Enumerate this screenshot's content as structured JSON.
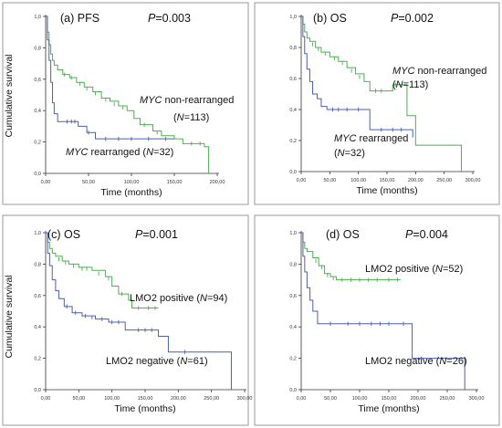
{
  "colors": {
    "group_a": "#4cb050",
    "group_b": "#4d5fb2"
  },
  "chart_data": [
    {
      "type": "line",
      "panel_label": "(a) PFS",
      "p_value_label": "P=0.003",
      "xlabel": "Time (months)",
      "ylabel": "Cumulative survival",
      "x_ticks": [
        "0,00",
        "50,00",
        "100,00",
        "150,00",
        "200,00"
      ],
      "y_ticks": [
        "0,0",
        "0,2",
        "0,4",
        "0,6",
        "0,8",
        "1,0"
      ],
      "xlim": [
        0,
        200
      ],
      "ylim": [
        0,
        1
      ],
      "series": [
        {
          "italic_part": "MYC",
          "rest_part": " non-rearranged",
          "n_label": "(N=113)",
          "points": [
            [
              0,
              1.0
            ],
            [
              2,
              0.9
            ],
            [
              4,
              0.82
            ],
            [
              6,
              0.76
            ],
            [
              8,
              0.72
            ],
            [
              10,
              0.69
            ],
            [
              14,
              0.66
            ],
            [
              20,
              0.63
            ],
            [
              28,
              0.61
            ],
            [
              36,
              0.58
            ],
            [
              45,
              0.55
            ],
            [
              55,
              0.52
            ],
            [
              65,
              0.48
            ],
            [
              75,
              0.46
            ],
            [
              85,
              0.43
            ],
            [
              95,
              0.4
            ],
            [
              103,
              0.35
            ],
            [
              110,
              0.31
            ],
            [
              125,
              0.27
            ],
            [
              135,
              0.24
            ],
            [
              150,
              0.22
            ],
            [
              160,
              0.19
            ],
            [
              175,
              0.19
            ],
            [
              185,
              0.17
            ],
            [
              190,
              0.0
            ]
          ],
          "censored": [
            [
              22,
              0.63
            ],
            [
              30,
              0.61
            ],
            [
              40,
              0.57
            ],
            [
              48,
              0.54
            ],
            [
              58,
              0.51
            ],
            [
              70,
              0.47
            ],
            [
              80,
              0.44
            ],
            [
              90,
              0.42
            ],
            [
              115,
              0.31
            ],
            [
              130,
              0.26
            ],
            [
              170,
              0.19
            ],
            [
              180,
              0.19
            ]
          ]
        },
        {
          "italic_part": "MYC",
          "rest_part": " rearranged",
          "n_label": "(N=32)",
          "points": [
            [
              0,
              1.0
            ],
            [
              2,
              0.85
            ],
            [
              4,
              0.72
            ],
            [
              6,
              0.58
            ],
            [
              8,
              0.45
            ],
            [
              10,
              0.38
            ],
            [
              14,
              0.33
            ],
            [
              20,
              0.33
            ],
            [
              38,
              0.3
            ],
            [
              48,
              0.26
            ],
            [
              58,
              0.22
            ],
            [
              150,
              0.22
            ]
          ],
          "censored": [
            [
              25,
              0.33
            ],
            [
              30,
              0.33
            ],
            [
              34,
              0.33
            ],
            [
              50,
              0.26
            ],
            [
              70,
              0.22
            ],
            [
              85,
              0.22
            ],
            [
              100,
              0.22
            ],
            [
              120,
              0.22
            ],
            [
              140,
              0.22
            ]
          ]
        }
      ]
    },
    {
      "type": "line",
      "panel_label": "(b) OS",
      "p_value_label": "P=0.002",
      "xlabel": "Time (months)",
      "ylabel": "",
      "x_ticks": [
        "0,00",
        "50,00",
        "100,00",
        "150,00",
        "200,00",
        "250,00",
        "300,00"
      ],
      "y_ticks": [
        "0,0",
        "0,2",
        "0,4",
        "0,6",
        "0,8",
        "1,0"
      ],
      "xlim": [
        0,
        300
      ],
      "ylim": [
        0,
        1
      ],
      "series": [
        {
          "italic_part": "MYC",
          "rest_part": " non-rearranged",
          "n_label": "(N=113)",
          "points": [
            [
              0,
              1.0
            ],
            [
              3,
              0.95
            ],
            [
              6,
              0.9
            ],
            [
              10,
              0.86
            ],
            [
              15,
              0.84
            ],
            [
              25,
              0.8
            ],
            [
              35,
              0.77
            ],
            [
              50,
              0.74
            ],
            [
              65,
              0.71
            ],
            [
              80,
              0.67
            ],
            [
              95,
              0.63
            ],
            [
              110,
              0.58
            ],
            [
              120,
              0.52
            ],
            [
              150,
              0.52
            ],
            [
              160,
              0.56
            ],
            [
              175,
              0.56
            ],
            [
              185,
              0.36
            ],
            [
              200,
              0.17
            ],
            [
              280,
              0.0
            ]
          ],
          "censored": [
            [
              20,
              0.82
            ],
            [
              30,
              0.79
            ],
            [
              42,
              0.76
            ],
            [
              58,
              0.73
            ],
            [
              72,
              0.7
            ],
            [
              88,
              0.65
            ],
            [
              102,
              0.61
            ],
            [
              130,
              0.52
            ],
            [
              140,
              0.52
            ],
            [
              165,
              0.56
            ]
          ]
        },
        {
          "italic_part": "MYC",
          "rest_part": " rearranged",
          "n_label": "(N=32)",
          "points": [
            [
              0,
              1.0
            ],
            [
              3,
              0.87
            ],
            [
              6,
              0.76
            ],
            [
              10,
              0.66
            ],
            [
              15,
              0.58
            ],
            [
              20,
              0.5
            ],
            [
              28,
              0.47
            ],
            [
              35,
              0.42
            ],
            [
              45,
              0.4
            ],
            [
              110,
              0.4
            ],
            [
              120,
              0.27
            ],
            [
              190,
              0.27
            ],
            [
              195,
              0.22
            ]
          ],
          "censored": [
            [
              55,
              0.4
            ],
            [
              65,
              0.4
            ],
            [
              80,
              0.4
            ],
            [
              100,
              0.4
            ],
            [
              140,
              0.27
            ],
            [
              160,
              0.27
            ],
            [
              175,
              0.27
            ]
          ]
        }
      ]
    },
    {
      "type": "line",
      "panel_label": "(c) OS",
      "p_value_label": "P=0.001",
      "xlabel": "Time (months)",
      "ylabel": "Cumulative survival",
      "x_ticks": [
        "0,00",
        "50,00",
        "100,00",
        "150,00",
        "200,00",
        "250,00",
        "300,00"
      ],
      "y_ticks": [
        "0,0",
        "0,2",
        "0,4",
        "0,6",
        "0,8",
        "1,0"
      ],
      "xlim": [
        0,
        300
      ],
      "ylim": [
        0,
        1
      ],
      "series": [
        {
          "name": "LMO2 positive",
          "n_label": "(N=94)",
          "points": [
            [
              0,
              1.0
            ],
            [
              3,
              0.94
            ],
            [
              6,
              0.9
            ],
            [
              10,
              0.87
            ],
            [
              15,
              0.85
            ],
            [
              25,
              0.82
            ],
            [
              35,
              0.8
            ],
            [
              50,
              0.78
            ],
            [
              70,
              0.76
            ],
            [
              90,
              0.72
            ],
            [
              100,
              0.66
            ],
            [
              110,
              0.61
            ],
            [
              125,
              0.57
            ],
            [
              130,
              0.52
            ],
            [
              170,
              0.52
            ]
          ],
          "censored": [
            [
              20,
              0.83
            ],
            [
              30,
              0.81
            ],
            [
              42,
              0.79
            ],
            [
              55,
              0.77
            ],
            [
              62,
              0.77
            ],
            [
              80,
              0.74
            ],
            [
              95,
              0.71
            ],
            [
              115,
              0.61
            ],
            [
              140,
              0.52
            ],
            [
              155,
              0.52
            ],
            [
              165,
              0.52
            ]
          ]
        },
        {
          "name": "LMO2 negative",
          "n_label": "(N=61)",
          "points": [
            [
              0,
              1.0
            ],
            [
              3,
              0.87
            ],
            [
              6,
              0.79
            ],
            [
              10,
              0.7
            ],
            [
              15,
              0.63
            ],
            [
              20,
              0.58
            ],
            [
              28,
              0.53
            ],
            [
              40,
              0.49
            ],
            [
              55,
              0.47
            ],
            [
              75,
              0.45
            ],
            [
              95,
              0.43
            ],
            [
              120,
              0.38
            ],
            [
              170,
              0.34
            ],
            [
              185,
              0.24
            ],
            [
              280,
              0.24
            ],
            [
              280,
              0.0
            ]
          ],
          "censored": [
            [
              32,
              0.53
            ],
            [
              45,
              0.49
            ],
            [
              60,
              0.47
            ],
            [
              70,
              0.46
            ],
            [
              85,
              0.45
            ],
            [
              100,
              0.43
            ],
            [
              110,
              0.43
            ],
            [
              140,
              0.38
            ],
            [
              150,
              0.38
            ],
            [
              160,
              0.38
            ],
            [
              210,
              0.24
            ]
          ]
        }
      ]
    },
    {
      "type": "line",
      "panel_label": "(d) OS",
      "p_value_label": "P=0.004",
      "xlabel": "Time (months)",
      "ylabel": "",
      "x_ticks": [
        "0,00",
        "50,00",
        "100,00",
        "150,00",
        "200,00",
        "250,00",
        "300,00"
      ],
      "y_ticks": [
        "0,0",
        "0,2",
        "0,4",
        "0,6",
        "0,8",
        "1,0"
      ],
      "xlim": [
        0,
        300
      ],
      "ylim": [
        0,
        1
      ],
      "series": [
        {
          "name": "LMO2 positive",
          "n_label": "(N=52)",
          "points": [
            [
              0,
              1.0
            ],
            [
              3,
              0.94
            ],
            [
              6,
              0.9
            ],
            [
              10,
              0.88
            ],
            [
              20,
              0.84
            ],
            [
              30,
              0.79
            ],
            [
              40,
              0.74
            ],
            [
              50,
              0.72
            ],
            [
              60,
              0.7
            ],
            [
              170,
              0.7
            ]
          ],
          "censored": [
            [
              25,
              0.82
            ],
            [
              35,
              0.78
            ],
            [
              45,
              0.73
            ],
            [
              55,
              0.71
            ],
            [
              70,
              0.7
            ],
            [
              85,
              0.7
            ],
            [
              100,
              0.7
            ],
            [
              115,
              0.7
            ],
            [
              130,
              0.7
            ],
            [
              150,
              0.7
            ],
            [
              165,
              0.7
            ]
          ]
        },
        {
          "name": "LMO2 negative",
          "n_label": "(N=26)",
          "points": [
            [
              0,
              1.0
            ],
            [
              3,
              0.85
            ],
            [
              6,
              0.75
            ],
            [
              10,
              0.65
            ],
            [
              15,
              0.57
            ],
            [
              20,
              0.5
            ],
            [
              28,
              0.42
            ],
            [
              185,
              0.42
            ],
            [
              190,
              0.2
            ],
            [
              275,
              0.2
            ],
            [
              280,
              0.0
            ]
          ],
          "censored": [
            [
              50,
              0.42
            ],
            [
              80,
              0.42
            ],
            [
              100,
              0.42
            ],
            [
              120,
              0.42
            ],
            [
              135,
              0.42
            ],
            [
              150,
              0.42
            ],
            [
              175,
              0.42
            ]
          ]
        }
      ]
    }
  ]
}
